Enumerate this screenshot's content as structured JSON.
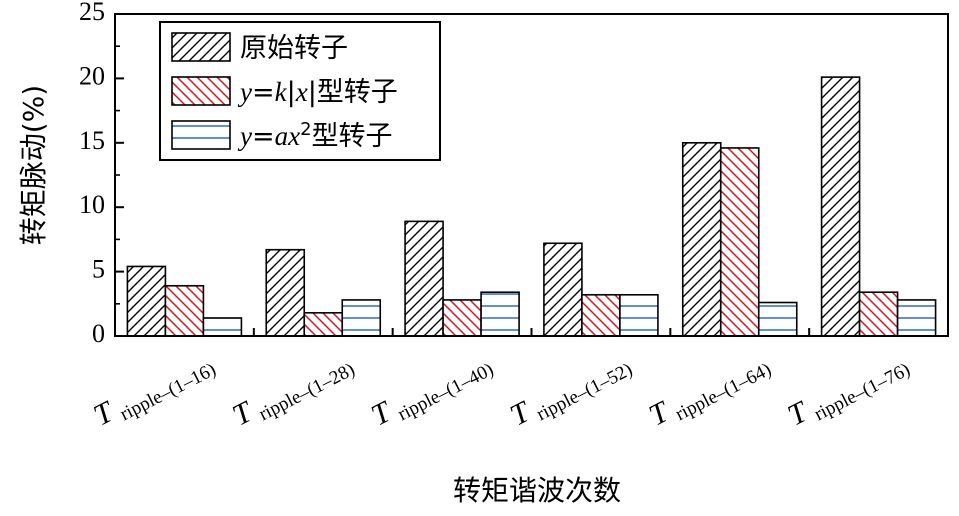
{
  "chart_data": {
    "type": "bar",
    "categories": [
      {
        "main": "T",
        "sub": "ripple–(1–16)"
      },
      {
        "main": "T",
        "sub": "ripple–(1–28)"
      },
      {
        "main": "T",
        "sub": "ripple–(1–40)"
      },
      {
        "main": "T",
        "sub": "ripple–(1–52)"
      },
      {
        "main": "T",
        "sub": "ripple–(1–64)"
      },
      {
        "main": "T",
        "sub": "ripple–(1–76)"
      }
    ],
    "series": [
      {
        "name": "原始转子",
        "values": [
          5.4,
          6.7,
          8.9,
          7.2,
          15.0,
          20.1
        ],
        "color": "#000000",
        "pattern": "diagonal-up"
      },
      {
        "name": "y=k|x|型转子",
        "values": [
          3.9,
          1.8,
          2.8,
          3.2,
          14.6,
          3.4
        ],
        "color": "#e0101e",
        "pattern": "diagonal-down"
      },
      {
        "name": "y=ax²型转子",
        "values": [
          1.4,
          2.8,
          3.4,
          3.2,
          2.6,
          2.8
        ],
        "color": "#1f5fbf",
        "pattern": "horizontal"
      }
    ],
    "legend_parts": [
      [
        {
          "t": "原始转子",
          "i": false,
          "sup": false
        }
      ],
      [
        {
          "t": "y",
          "i": true,
          "sup": false
        },
        {
          "t": "=",
          "i": false,
          "sup": false
        },
        {
          "t": "k",
          "i": true,
          "sup": false
        },
        {
          "t": "|",
          "i": false,
          "sup": false
        },
        {
          "t": "x",
          "i": true,
          "sup": false
        },
        {
          "t": "|型转子",
          "i": false,
          "sup": false
        }
      ],
      [
        {
          "t": "y",
          "i": true,
          "sup": false
        },
        {
          "t": "=",
          "i": false,
          "sup": false
        },
        {
          "t": "ax",
          "i": true,
          "sup": false
        },
        {
          "t": "2",
          "i": false,
          "sup": true
        },
        {
          "t": "型转子",
          "i": false,
          "sup": false
        }
      ]
    ],
    "ylim": [
      0,
      25
    ],
    "yticks": [
      0,
      5,
      10,
      15,
      20,
      25
    ],
    "ylabel": "转矩脉动(%)",
    "xlabel": "转矩谐波次数",
    "legend_position": "top-left",
    "grid": false
  }
}
